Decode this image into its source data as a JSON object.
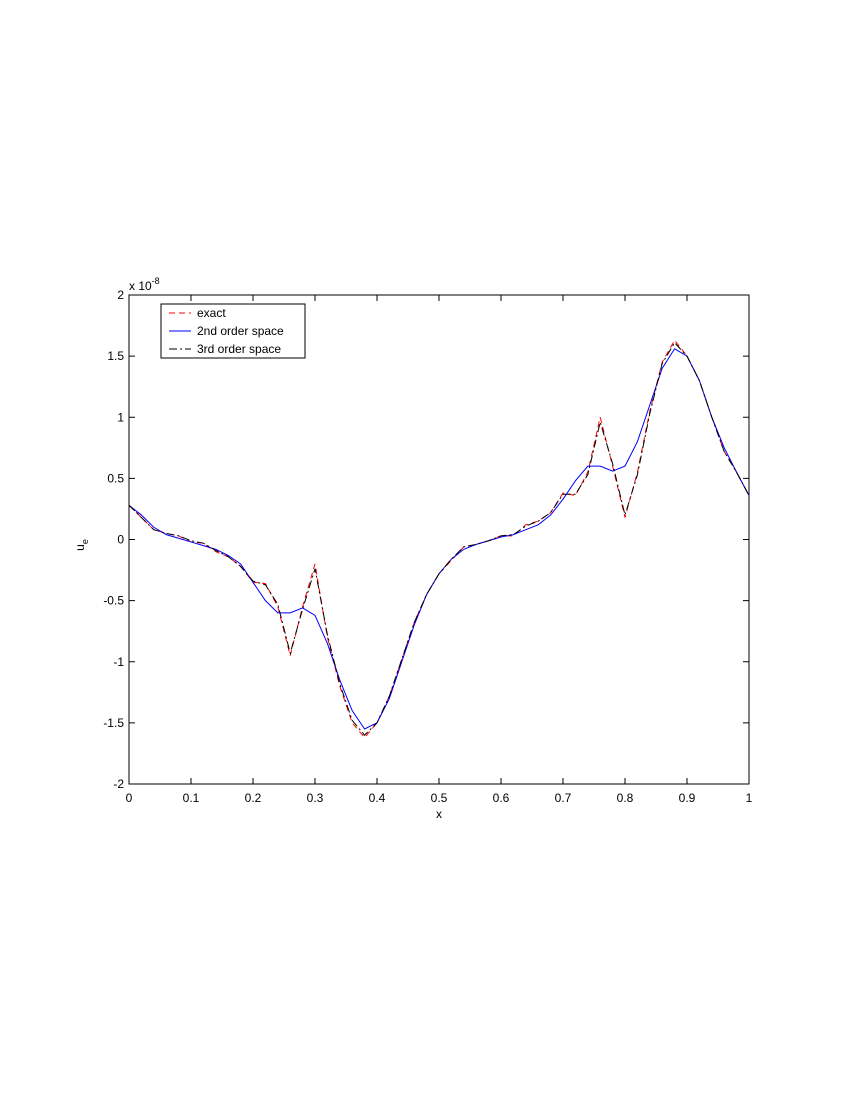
{
  "chart_data": {
    "type": "line",
    "xlabel": "x",
    "ylabel": "u",
    "ylabel_subscript": "e",
    "y_scale_label": "x 10",
    "y_scale_exponent": "-8",
    "x": [
      0,
      0.02,
      0.04,
      0.06,
      0.08,
      0.1,
      0.12,
      0.14,
      0.16,
      0.18,
      0.2,
      0.22,
      0.24,
      0.26,
      0.28,
      0.3,
      0.32,
      0.34,
      0.36,
      0.38,
      0.4,
      0.42,
      0.44,
      0.46,
      0.48,
      0.5,
      0.52,
      0.54,
      0.56,
      0.58,
      0.6,
      0.62,
      0.64,
      0.66,
      0.68,
      0.7,
      0.72,
      0.74,
      0.76,
      0.78,
      0.8,
      0.82,
      0.84,
      0.86,
      0.88,
      0.9,
      0.92,
      0.94,
      0.96,
      0.98,
      1.0
    ],
    "series": [
      {
        "name": "exact",
        "color": "#ff0000",
        "dash": "6,4",
        "values": [
          0.28,
          0.18,
          0.08,
          0.05,
          0.03,
          -0.02,
          -0.03,
          -0.1,
          -0.14,
          -0.22,
          -0.35,
          -0.36,
          -0.55,
          -0.95,
          -0.55,
          -0.2,
          -0.8,
          -1.2,
          -1.5,
          -1.62,
          -1.5,
          -1.28,
          -0.98,
          -0.68,
          -0.45,
          -0.28,
          -0.17,
          -0.06,
          -0.04,
          -0.01,
          0.03,
          0.03,
          0.12,
          0.15,
          0.22,
          0.38,
          0.36,
          0.55,
          1.0,
          0.6,
          0.18,
          0.55,
          1.05,
          1.45,
          1.63,
          1.5,
          1.3,
          1.0,
          0.72,
          0.55,
          0.36
        ]
      },
      {
        "name": "2nd order space",
        "color": "#0000ff",
        "dash": "none",
        "values": [
          0.28,
          0.2,
          0.1,
          0.04,
          0.01,
          -0.02,
          -0.05,
          -0.08,
          -0.13,
          -0.2,
          -0.35,
          -0.5,
          -0.6,
          -0.6,
          -0.56,
          -0.62,
          -0.85,
          -1.15,
          -1.4,
          -1.55,
          -1.5,
          -1.3,
          -1.0,
          -0.7,
          -0.45,
          -0.28,
          -0.16,
          -0.08,
          -0.04,
          -0.01,
          0.02,
          0.04,
          0.08,
          0.12,
          0.2,
          0.33,
          0.48,
          0.6,
          0.6,
          0.56,
          0.6,
          0.8,
          1.1,
          1.4,
          1.56,
          1.5,
          1.3,
          1.0,
          0.75,
          0.55,
          0.36
        ]
      },
      {
        "name": "3rd order space",
        "color": "#000000",
        "dash": "8,3,2,3",
        "values": [
          0.28,
          0.18,
          0.08,
          0.05,
          0.03,
          -0.01,
          -0.03,
          -0.09,
          -0.14,
          -0.22,
          -0.34,
          -0.37,
          -0.53,
          -0.93,
          -0.57,
          -0.24,
          -0.78,
          -1.18,
          -1.48,
          -1.6,
          -1.5,
          -1.28,
          -0.98,
          -0.68,
          -0.45,
          -0.28,
          -0.16,
          -0.06,
          -0.04,
          -0.01,
          0.03,
          0.04,
          0.11,
          0.15,
          0.22,
          0.37,
          0.37,
          0.53,
          0.96,
          0.62,
          0.2,
          0.53,
          1.03,
          1.44,
          1.61,
          1.5,
          1.3,
          1.0,
          0.72,
          0.55,
          0.36
        ]
      }
    ],
    "xlim": [
      0,
      1
    ],
    "xticks": [
      0,
      0.1,
      0.2,
      0.3,
      0.4,
      0.5,
      0.6,
      0.7,
      0.8,
      0.9,
      1
    ],
    "ylim": [
      -2,
      2
    ],
    "yticks": [
      -2,
      -1.5,
      -1,
      -0.5,
      0,
      0.5,
      1,
      1.5,
      2
    ],
    "grid": false,
    "legend": "upper left"
  }
}
